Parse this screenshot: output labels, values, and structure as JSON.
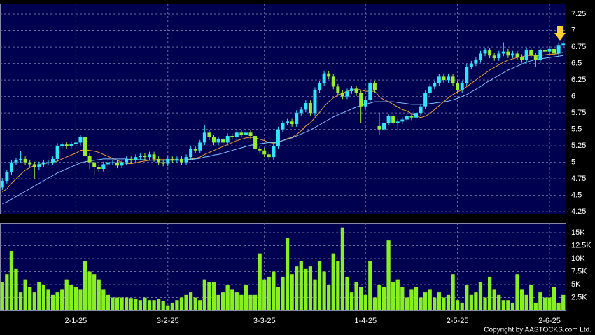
{
  "chart_data": {
    "type": "candlestick",
    "categories": [
      null,
      null,
      null,
      null,
      null,
      null,
      null,
      null,
      null,
      null,
      null,
      null,
      null,
      null,
      null,
      null,
      "2-1-25",
      null,
      null,
      null,
      null,
      null,
      null,
      null,
      null,
      null,
      null,
      null,
      null,
      null,
      null,
      null,
      null,
      null,
      null,
      null,
      "3-2-25",
      null,
      null,
      null,
      null,
      null,
      null,
      null,
      null,
      null,
      null,
      null,
      null,
      null,
      null,
      null,
      null,
      null,
      null,
      null,
      null,
      "3-3-25",
      null,
      null,
      null,
      null,
      null,
      null,
      null,
      null,
      null,
      null,
      null,
      null,
      null,
      null,
      null,
      null,
      null,
      null,
      null,
      null,
      null,
      "1-4-25",
      null,
      null,
      null,
      null,
      null,
      null,
      null,
      null,
      null,
      null,
      null,
      null,
      null,
      null,
      null,
      null,
      null,
      null,
      null,
      "2-5-25",
      null,
      null,
      null,
      null,
      null,
      null,
      null,
      null,
      null,
      null,
      null,
      null,
      null,
      null,
      null,
      null,
      null,
      null,
      null,
      "2-6-25",
      null,
      null,
      null
    ],
    "open": [
      4.62,
      4.72,
      4.85,
      5.0,
      5.03,
      5.05,
      5.0,
      4.97,
      4.93,
      4.97,
      5.0,
      5.0,
      5.05,
      5.25,
      5.27,
      5.25,
      5.28,
      5.3,
      5.38,
      5.1,
      5.0,
      4.93,
      4.9,
      4.97,
      5.0,
      5.0,
      4.95,
      5.0,
      5.05,
      5.03,
      5.08,
      5.1,
      5.08,
      5.12,
      5.05,
      5.0,
      4.98,
      5.05,
      5.03,
      5.05,
      5.0,
      5.08,
      5.2,
      5.18,
      5.3,
      5.45,
      5.38,
      5.3,
      5.35,
      5.3,
      5.4,
      5.38,
      5.45,
      5.42,
      5.45,
      5.4,
      5.2,
      5.18,
      5.12,
      5.08,
      5.25,
      5.5,
      5.6,
      5.62,
      5.58,
      5.75,
      5.8,
      5.9,
      5.75,
      6.1,
      6.2,
      6.35,
      6.3,
      6.15,
      6.05,
      6.0,
      6.08,
      6.12,
      6.05,
      5.85,
      5.95,
      6.2,
      5.55,
      5.5,
      5.6,
      5.7,
      5.6,
      5.62,
      5.65,
      5.7,
      5.68,
      5.75,
      5.85,
      6.05,
      6.15,
      6.2,
      6.3,
      6.25,
      6.3,
      6.2,
      6.1,
      6.2,
      6.45,
      6.5,
      6.55,
      6.65,
      6.7,
      6.62,
      6.58,
      6.65,
      6.68,
      6.62,
      6.65,
      6.6,
      6.55,
      6.7,
      6.62,
      6.55,
      6.7,
      6.68,
      6.72,
      6.65,
      6.78
    ],
    "high": [
      4.76,
      4.89,
      5.04,
      5.07,
      5.17,
      5.09,
      5.04,
      5.01,
      5.01,
      5.04,
      5.04,
      5.09,
      5.29,
      5.31,
      5.31,
      5.32,
      5.34,
      5.42,
      5.42,
      5.14,
      5.04,
      4.97,
      5.01,
      5.04,
      5.04,
      5.04,
      5.04,
      5.09,
      5.09,
      5.12,
      5.14,
      5.14,
      5.16,
      5.16,
      5.09,
      5.04,
      5.09,
      5.09,
      5.09,
      5.09,
      5.12,
      5.24,
      5.24,
      5.34,
      5.57,
      5.49,
      5.42,
      5.39,
      5.39,
      5.44,
      5.44,
      5.49,
      5.49,
      5.49,
      5.49,
      5.44,
      5.24,
      5.22,
      5.16,
      5.29,
      5.54,
      5.64,
      5.66,
      5.66,
      5.79,
      5.84,
      5.94,
      5.94,
      6.14,
      6.24,
      6.39,
      6.39,
      6.34,
      6.19,
      6.09,
      6.12,
      6.16,
      6.16,
      6.09,
      5.99,
      6.24,
      6.24,
      5.75,
      5.64,
      5.74,
      5.74,
      5.66,
      5.69,
      5.74,
      5.74,
      5.79,
      5.89,
      6.09,
      6.19,
      6.24,
      6.34,
      6.34,
      6.34,
      6.34,
      6.24,
      6.24,
      6.49,
      6.54,
      6.59,
      6.69,
      6.74,
      6.74,
      6.66,
      6.69,
      6.82,
      6.72,
      6.69,
      6.69,
      6.64,
      6.74,
      6.74,
      6.66,
      6.74,
      6.74,
      6.76,
      6.76,
      6.82,
      6.84
    ],
    "low": [
      4.58,
      4.68,
      4.81,
      4.96,
      4.99,
      4.96,
      4.93,
      4.75,
      4.89,
      4.93,
      4.96,
      4.96,
      5.01,
      5.21,
      5.21,
      5.21,
      5.24,
      5.26,
      5.06,
      4.9,
      4.8,
      4.86,
      4.86,
      4.93,
      4.96,
      4.91,
      4.91,
      4.96,
      4.99,
      4.99,
      5.04,
      5.04,
      5.04,
      5.01,
      4.96,
      4.94,
      4.94,
      4.99,
      4.99,
      4.96,
      4.96,
      5.04,
      5.14,
      5.14,
      5.26,
      5.34,
      5.26,
      5.26,
      5.26,
      5.26,
      5.34,
      5.34,
      5.38,
      5.38,
      5.36,
      5.16,
      5.14,
      5.08,
      5.04,
      5.04,
      5.21,
      5.46,
      5.56,
      5.54,
      5.54,
      5.71,
      5.76,
      5.71,
      5.71,
      6.06,
      6.16,
      6.26,
      6.11,
      6.01,
      5.96,
      5.96,
      6.04,
      6.01,
      5.6,
      5.81,
      5.91,
      6.06,
      5.42,
      5.46,
      5.56,
      5.56,
      5.48,
      5.58,
      5.61,
      5.64,
      5.64,
      5.71,
      5.81,
      6.01,
      6.11,
      6.16,
      6.21,
      6.21,
      6.16,
      6.06,
      6.06,
      6.16,
      6.41,
      6.46,
      6.51,
      6.61,
      6.58,
      6.54,
      6.54,
      6.61,
      6.58,
      6.58,
      6.56,
      6.51,
      6.51,
      6.58,
      6.45,
      6.51,
      6.64,
      6.64,
      6.61,
      6.61,
      6.74
    ],
    "close": [
      4.72,
      4.85,
      5.0,
      5.03,
      5.05,
      5.0,
      4.97,
      4.93,
      4.97,
      5.0,
      5.0,
      5.05,
      5.25,
      5.27,
      5.25,
      5.28,
      5.3,
      5.38,
      5.1,
      5.0,
      4.93,
      4.9,
      4.97,
      5.0,
      5.0,
      4.95,
      5.0,
      5.05,
      5.03,
      5.08,
      5.1,
      5.08,
      5.12,
      5.05,
      5.0,
      4.98,
      5.05,
      5.03,
      5.05,
      5.0,
      5.08,
      5.2,
      5.18,
      5.3,
      5.45,
      5.38,
      5.3,
      5.35,
      5.3,
      5.4,
      5.38,
      5.45,
      5.42,
      5.45,
      5.4,
      5.2,
      5.18,
      5.12,
      5.08,
      5.25,
      5.5,
      5.6,
      5.62,
      5.58,
      5.75,
      5.8,
      5.9,
      5.75,
      6.1,
      6.2,
      6.35,
      6.3,
      6.15,
      6.05,
      6.0,
      6.08,
      6.12,
      6.05,
      5.85,
      5.95,
      6.2,
      6.1,
      5.5,
      5.6,
      5.7,
      5.6,
      5.62,
      5.65,
      5.7,
      5.68,
      5.75,
      5.85,
      6.05,
      6.15,
      6.2,
      6.3,
      6.25,
      6.3,
      6.2,
      6.1,
      6.2,
      6.45,
      6.5,
      6.55,
      6.65,
      6.7,
      6.62,
      6.58,
      6.65,
      6.68,
      6.62,
      6.65,
      6.6,
      6.55,
      6.7,
      6.62,
      6.55,
      6.7,
      6.68,
      6.72,
      6.65,
      6.78,
      6.8
    ],
    "volume": [
      5500,
      7000,
      11500,
      8000,
      3500,
      6000,
      4500,
      3500,
      5500,
      5000,
      4000,
      3000,
      3500,
      4000,
      6000,
      5000,
      4500,
      4000,
      9500,
      7500,
      7000,
      6000,
      4000,
      3000,
      2500,
      2500,
      2500,
      2500,
      2400,
      2200,
      2000,
      2500,
      2000,
      2000,
      2200,
      1800,
      1000,
      1500,
      2000,
      2500,
      3000,
      3500,
      2500,
      2000,
      6000,
      5500,
      5500,
      3000,
      3500,
      5000,
      4000,
      3500,
      3000,
      5000,
      3000,
      3000,
      11000,
      6000,
      6500,
      7500,
      4500,
      6500,
      14000,
      7000,
      8500,
      9500,
      8000,
      8500,
      6000,
      9500,
      7500,
      5000,
      11000,
      9500,
      16000,
      6500,
      3500,
      5500,
      4500,
      3000,
      9500,
      2500,
      5000,
      4500,
      13500,
      5500,
      6000,
      4500,
      2500,
      4000,
      4500,
      2500,
      3500,
      4000,
      2500,
      3500,
      2500,
      3000,
      7000,
      2000,
      1500,
      5000,
      3000,
      3500,
      5500,
      2500,
      6500,
      4000,
      3000,
      2000,
      2000,
      1500,
      7000,
      4000,
      3000,
      5000,
      1500,
      3500,
      2500,
      2500,
      4500,
      1500,
      3000
    ],
    "ma_lines": [
      {
        "color": "#f0a030",
        "values": [
          4.55,
          4.6,
          4.68,
          4.75,
          4.82,
          4.88,
          4.92,
          4.95,
          4.97,
          4.98,
          4.99,
          5.0,
          5.02,
          5.05,
          5.08,
          5.11,
          5.14,
          5.18,
          5.19,
          5.18,
          5.17,
          5.15,
          5.12,
          5.09,
          5.06,
          5.03,
          5.0,
          4.98,
          4.98,
          4.99,
          5.01,
          5.02,
          5.03,
          5.04,
          5.04,
          5.04,
          5.04,
          5.04,
          5.04,
          5.03,
          5.04,
          5.05,
          5.06,
          5.08,
          5.12,
          5.15,
          5.18,
          5.21,
          5.24,
          5.27,
          5.3,
          5.33,
          5.35,
          5.37,
          5.38,
          5.37,
          5.35,
          5.33,
          5.3,
          5.29,
          5.3,
          5.33,
          5.36,
          5.38,
          5.42,
          5.48,
          5.55,
          5.6,
          5.68,
          5.76,
          5.85,
          5.92,
          5.98,
          6.02,
          6.05,
          6.08,
          6.1,
          6.11,
          6.1,
          6.08,
          6.08,
          6.08,
          6.0,
          5.95,
          5.92,
          5.88,
          5.84,
          5.8,
          5.78,
          5.74,
          5.7,
          5.68,
          5.7,
          5.74,
          5.8,
          5.86,
          5.92,
          5.98,
          6.03,
          6.07,
          6.1,
          6.15,
          6.2,
          6.25,
          6.3,
          6.35,
          6.4,
          6.44,
          6.48,
          6.52,
          6.55,
          6.57,
          6.59,
          6.6,
          6.62,
          6.62,
          6.62,
          6.62,
          6.63,
          6.64,
          6.64,
          6.65,
          6.67
        ]
      },
      {
        "color": "#7fc4ff",
        "values": [
          4.37,
          4.4,
          4.44,
          4.48,
          4.52,
          4.56,
          4.6,
          4.64,
          4.68,
          4.72,
          4.76,
          4.8,
          4.84,
          4.87,
          4.9,
          4.93,
          4.96,
          4.99,
          5.01,
          5.02,
          5.03,
          5.04,
          5.05,
          5.05,
          5.05,
          5.05,
          5.05,
          5.05,
          5.04,
          5.04,
          5.04,
          5.04,
          5.03,
          5.03,
          5.03,
          5.03,
          5.03,
          5.03,
          5.03,
          5.03,
          5.04,
          5.04,
          5.05,
          5.06,
          5.08,
          5.09,
          5.11,
          5.12,
          5.14,
          5.16,
          5.18,
          5.2,
          5.22,
          5.24,
          5.26,
          5.27,
          5.28,
          5.29,
          5.3,
          5.3,
          5.31,
          5.33,
          5.35,
          5.37,
          5.4,
          5.43,
          5.46,
          5.49,
          5.53,
          5.57,
          5.61,
          5.65,
          5.69,
          5.72,
          5.75,
          5.78,
          5.81,
          5.84,
          5.86,
          5.88,
          5.9,
          5.92,
          5.92,
          5.92,
          5.92,
          5.92,
          5.91,
          5.9,
          5.89,
          5.88,
          5.88,
          5.88,
          5.88,
          5.89,
          5.9,
          5.91,
          5.92,
          5.93,
          5.95,
          5.97,
          6.0,
          6.03,
          6.07,
          6.11,
          6.15,
          6.2,
          6.24,
          6.28,
          6.32,
          6.36,
          6.4,
          6.43,
          6.46,
          6.49,
          6.52,
          6.54,
          6.56,
          6.57,
          6.58,
          6.59,
          6.6,
          6.61,
          6.62
        ]
      }
    ],
    "ylim": [
      4.22,
      7.41
    ],
    "yticks": [
      4.25,
      4.5,
      4.75,
      5,
      5.25,
      5.5,
      5.75,
      6,
      6.25,
      6.5,
      6.75,
      7,
      7.25
    ],
    "volume_ylim": [
      0,
      16900
    ],
    "volume_yticks": [
      {
        "value": 2500,
        "label": "2.5K"
      },
      {
        "value": 5000,
        "label": "5K"
      },
      {
        "value": 7500,
        "label": "7.5K"
      },
      {
        "value": 10000,
        "label": "10K"
      },
      {
        "value": 12500,
        "label": "12.5K"
      },
      {
        "value": 15000,
        "label": "15K"
      }
    ],
    "grid": true,
    "up_color": "#2ee6ff",
    "down_color": "#99ee2a",
    "volume_color": "#88f020",
    "annotations": [
      "Copyright by AASTOCKS.com Ltd."
    ]
  }
}
